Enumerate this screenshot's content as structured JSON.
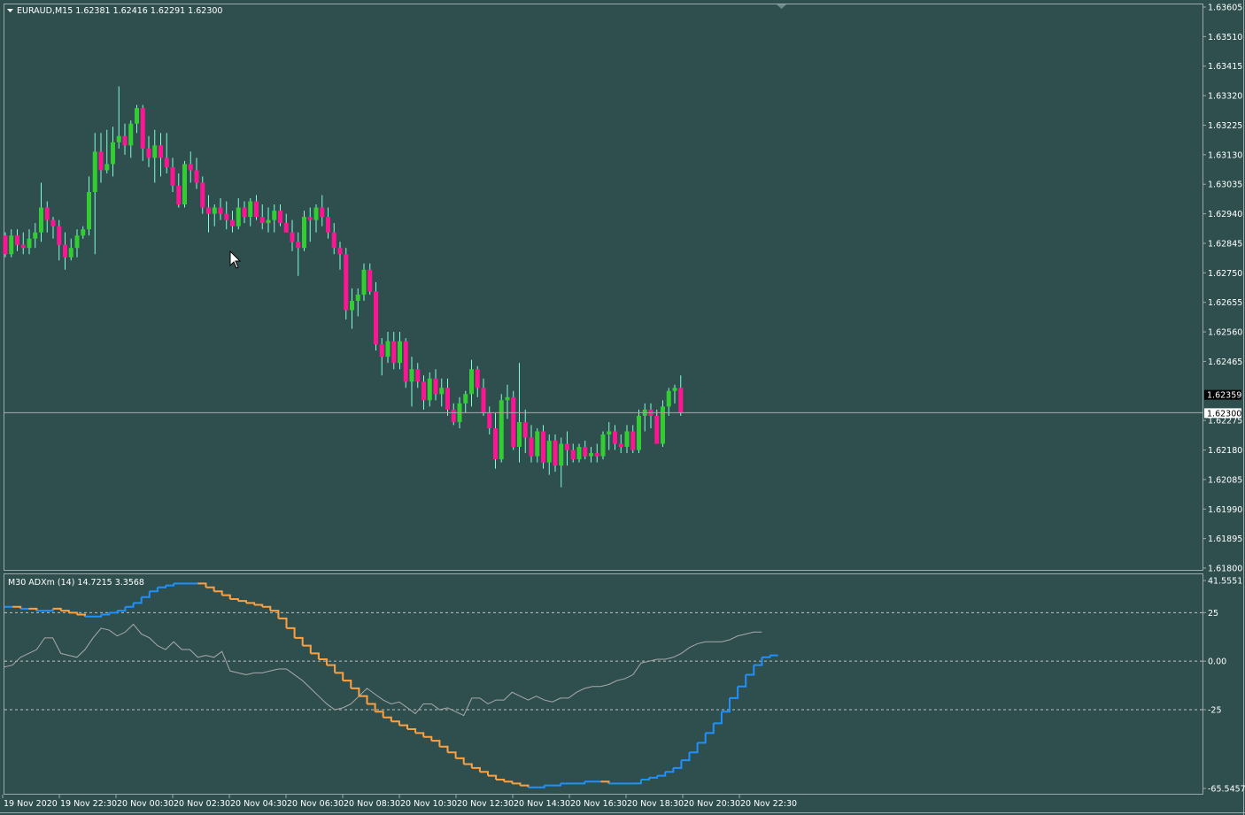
{
  "window": {
    "symbol_header": "EURAUD,M15  1.62381 1.62416 1.62291 1.62300",
    "collapse_icon": "triangle-down-icon"
  },
  "colors": {
    "background": "#2f4f4f",
    "bull_candle": "#32cd32",
    "bear_candle": "#ff1493",
    "wick": "#7fffd4",
    "bid_line": "#a9a9a9",
    "adx_up": "#1e90ff",
    "adx_down": "#ffa040",
    "adx_secondary": "#a9a9a9"
  },
  "price_axis": {
    "ticks": [
      "1.63605",
      "1.63510",
      "1.63415",
      "1.63320",
      "1.63225",
      "1.63130",
      "1.63035",
      "1.62940",
      "1.62845",
      "1.62750",
      "1.62655",
      "1.62560",
      "1.62465",
      "1.62275",
      "1.62180",
      "1.62085",
      "1.61990",
      "1.61895",
      "1.61800"
    ],
    "bid_label": "1.62300",
    "ask_label": "1.62359"
  },
  "indicator": {
    "header": "M30 ADXm (14) 14.7215 3.3568",
    "axis_ticks": [
      "41.5551",
      "25",
      "0.00",
      "-25",
      "-65.5457"
    ]
  },
  "time_axis": {
    "labels": [
      "19 Nov 2020",
      "19 Nov 22:30",
      "20 Nov 00:30",
      "20 Nov 02:30",
      "20 Nov 04:30",
      "20 Nov 06:30",
      "20 Nov 08:30",
      "20 Nov 10:30",
      "20 Nov 12:30",
      "20 Nov 14:30",
      "20 Nov 16:30",
      "20 Nov 18:30",
      "20 Nov 20:30",
      "20 Nov 22:30"
    ]
  },
  "chart_data": [
    {
      "type": "candlestick",
      "symbol": "EURAUD",
      "timeframe": "M15",
      "ylim": [
        1.618,
        1.63605
      ],
      "candles": [
        [
          1.6287,
          1.6288,
          1.628,
          1.6281
        ],
        [
          1.6281,
          1.6289,
          1.628,
          1.6287
        ],
        [
          1.6287,
          1.6289,
          1.6282,
          1.6284
        ],
        [
          1.6284,
          1.6288,
          1.6281,
          1.6283
        ],
        [
          1.6283,
          1.6289,
          1.6281,
          1.6286
        ],
        [
          1.6286,
          1.6291,
          1.6283,
          1.6288
        ],
        [
          1.6288,
          1.6304,
          1.6285,
          1.6296
        ],
        [
          1.6296,
          1.6298,
          1.6288,
          1.6292
        ],
        [
          1.6292,
          1.6293,
          1.6286,
          1.629
        ],
        [
          1.629,
          1.6292,
          1.6279,
          1.6284
        ],
        [
          1.6284,
          1.6288,
          1.6276,
          1.628
        ],
        [
          1.628,
          1.6286,
          1.6279,
          1.6283
        ],
        [
          1.6283,
          1.6289,
          1.628,
          1.6287
        ],
        [
          1.6287,
          1.629,
          1.6286,
          1.6289
        ],
        [
          1.6289,
          1.6306,
          1.6287,
          1.6301
        ],
        [
          1.6301,
          1.632,
          1.6281,
          1.6314
        ],
        [
          1.6314,
          1.632,
          1.6304,
          1.6308
        ],
        [
          1.6308,
          1.6321,
          1.6307,
          1.631
        ],
        [
          1.631,
          1.6322,
          1.6306,
          1.6317
        ],
        [
          1.6317,
          1.6335,
          1.6315,
          1.6319
        ],
        [
          1.6319,
          1.6323,
          1.6313,
          1.6316
        ],
        [
          1.6316,
          1.6324,
          1.6312,
          1.6323
        ],
        [
          1.6323,
          1.6329,
          1.632,
          1.6328
        ],
        [
          1.6328,
          1.6329,
          1.6311,
          1.6315
        ],
        [
          1.6315,
          1.6319,
          1.6309,
          1.6312
        ],
        [
          1.6312,
          1.6321,
          1.6304,
          1.6316
        ],
        [
          1.6316,
          1.632,
          1.6306,
          1.6312
        ],
        [
          1.6312,
          1.632,
          1.6307,
          1.6309
        ],
        [
          1.6309,
          1.6312,
          1.6301,
          1.6303
        ],
        [
          1.6303,
          1.6307,
          1.6296,
          1.6297
        ],
        [
          1.6297,
          1.6311,
          1.6296,
          1.631
        ],
        [
          1.631,
          1.6314,
          1.6304,
          1.6308
        ],
        [
          1.6308,
          1.6312,
          1.6302,
          1.6304
        ],
        [
          1.6304,
          1.6306,
          1.6294,
          1.6296
        ],
        [
          1.6296,
          1.63,
          1.6288,
          1.6294
        ],
        [
          1.6294,
          1.6297,
          1.629,
          1.6296
        ],
        [
          1.6296,
          1.6299,
          1.6292,
          1.6294
        ],
        [
          1.6294,
          1.6298,
          1.6289,
          1.6292
        ],
        [
          1.6292,
          1.6295,
          1.6288,
          1.629
        ],
        [
          1.629,
          1.6299,
          1.6289,
          1.6296
        ],
        [
          1.6296,
          1.6298,
          1.6291,
          1.6293
        ],
        [
          1.6293,
          1.6299,
          1.629,
          1.6298
        ],
        [
          1.6298,
          1.63,
          1.6292,
          1.6293
        ],
        [
          1.6293,
          1.6297,
          1.6289,
          1.6291
        ],
        [
          1.6291,
          1.6296,
          1.6288,
          1.6292
        ],
        [
          1.6292,
          1.6297,
          1.6288,
          1.6295
        ],
        [
          1.6295,
          1.6297,
          1.629,
          1.6291
        ],
        [
          1.6291,
          1.6294,
          1.6288,
          1.6288
        ],
        [
          1.6288,
          1.6292,
          1.6282,
          1.6285
        ],
        [
          1.6285,
          1.6288,
          1.6274,
          1.6283
        ],
        [
          1.6283,
          1.6295,
          1.6282,
          1.6293
        ],
        [
          1.6293,
          1.6296,
          1.6285,
          1.6292
        ],
        [
          1.6292,
          1.6297,
          1.6288,
          1.6296
        ],
        [
          1.6296,
          1.63,
          1.629,
          1.6293
        ],
        [
          1.6293,
          1.6296,
          1.6286,
          1.6288
        ],
        [
          1.6288,
          1.6291,
          1.6281,
          1.6283
        ],
        [
          1.6283,
          1.6285,
          1.6276,
          1.6281
        ],
        [
          1.6281,
          1.6283,
          1.626,
          1.6263
        ],
        [
          1.6263,
          1.627,
          1.6257,
          1.6266
        ],
        [
          1.6266,
          1.627,
          1.6261,
          1.6268
        ],
        [
          1.6268,
          1.6278,
          1.6266,
          1.6276
        ],
        [
          1.6276,
          1.6278,
          1.6268,
          1.6269
        ],
        [
          1.6269,
          1.6272,
          1.625,
          1.6252
        ],
        [
          1.6252,
          1.6254,
          1.6242,
          1.6248
        ],
        [
          1.6248,
          1.6256,
          1.6246,
          1.6253
        ],
        [
          1.6253,
          1.6256,
          1.6244,
          1.6246
        ],
        [
          1.6246,
          1.6256,
          1.6244,
          1.6253
        ],
        [
          1.6253,
          1.6254,
          1.6238,
          1.624
        ],
        [
          1.624,
          1.6248,
          1.6232,
          1.6244
        ],
        [
          1.6244,
          1.6246,
          1.6238,
          1.624
        ],
        [
          1.624,
          1.6242,
          1.6231,
          1.6234
        ],
        [
          1.6234,
          1.6243,
          1.6232,
          1.6241
        ],
        [
          1.6241,
          1.6244,
          1.6234,
          1.6236
        ],
        [
          1.6236,
          1.6241,
          1.6232,
          1.6238
        ],
        [
          1.6238,
          1.6241,
          1.6229,
          1.6231
        ],
        [
          1.6231,
          1.6233,
          1.6226,
          1.6227
        ],
        [
          1.6227,
          1.6235,
          1.6225,
          1.6233
        ],
        [
          1.6233,
          1.6237,
          1.623,
          1.6236
        ],
        [
          1.6236,
          1.6247,
          1.6232,
          1.6244
        ],
        [
          1.6244,
          1.6245,
          1.6235,
          1.6238
        ],
        [
          1.6238,
          1.6241,
          1.6229,
          1.623
        ],
        [
          1.623,
          1.6232,
          1.6223,
          1.6225
        ],
        [
          1.6225,
          1.623,
          1.6212,
          1.6215
        ],
        [
          1.6215,
          1.6236,
          1.6214,
          1.6234
        ],
        [
          1.6234,
          1.6239,
          1.6228,
          1.6235
        ],
        [
          1.6235,
          1.6237,
          1.6218,
          1.6219
        ],
        [
          1.6219,
          1.6246,
          1.6214,
          1.6227
        ],
        [
          1.6227,
          1.6231,
          1.6217,
          1.6222
        ],
        [
          1.6222,
          1.6226,
          1.6214,
          1.6216
        ],
        [
          1.6216,
          1.6225,
          1.6214,
          1.6224
        ],
        [
          1.6224,
          1.6226,
          1.6212,
          1.6214
        ],
        [
          1.6214,
          1.6223,
          1.621,
          1.6221
        ],
        [
          1.6221,
          1.6223,
          1.6211,
          1.6213
        ],
        [
          1.6213,
          1.6222,
          1.6206,
          1.622
        ],
        [
          1.622,
          1.6224,
          1.6213,
          1.6218
        ],
        [
          1.6218,
          1.622,
          1.6214,
          1.6215
        ],
        [
          1.6215,
          1.622,
          1.6214,
          1.6219
        ],
        [
          1.6219,
          1.6221,
          1.6215,
          1.6216
        ],
        [
          1.6216,
          1.6219,
          1.6214,
          1.6217
        ],
        [
          1.6217,
          1.622,
          1.6214,
          1.6216
        ],
        [
          1.6216,
          1.6224,
          1.6215,
          1.6223
        ],
        [
          1.6223,
          1.6227,
          1.6218,
          1.6224
        ],
        [
          1.6224,
          1.6226,
          1.6218,
          1.622
        ],
        [
          1.622,
          1.6223,
          1.6217,
          1.6219
        ],
        [
          1.6219,
          1.6226,
          1.6217,
          1.6224
        ],
        [
          1.6224,
          1.6226,
          1.6217,
          1.6218
        ],
        [
          1.6218,
          1.6231,
          1.6217,
          1.6229
        ],
        [
          1.6229,
          1.6233,
          1.6224,
          1.6231
        ],
        [
          1.6231,
          1.6233,
          1.6225,
          1.6229
        ],
        [
          1.6229,
          1.6231,
          1.622,
          1.622
        ],
        [
          1.622,
          1.6234,
          1.6219,
          1.6232
        ],
        [
          1.6232,
          1.6238,
          1.6229,
          1.6237
        ],
        [
          1.6237,
          1.6239,
          1.6233,
          1.6238
        ],
        [
          1.6238,
          1.6242,
          1.6229,
          1.623
        ]
      ]
    },
    {
      "type": "line",
      "name": "ADXm",
      "ylim": [
        -65.5457,
        41.5551
      ],
      "levels": [
        25,
        0,
        -25
      ],
      "series": [
        {
          "values": [
            28,
            28,
            27,
            27,
            26,
            26,
            27,
            26,
            25,
            24,
            23,
            23,
            24,
            25,
            26,
            28,
            30,
            33,
            36,
            38,
            39,
            40,
            40,
            40,
            40,
            38,
            36,
            34,
            32,
            31,
            30,
            29,
            28,
            26,
            22,
            17,
            12,
            8,
            4,
            1,
            -2,
            -6,
            -10,
            -14,
            -18,
            -22,
            -26,
            -29,
            -31,
            -33,
            -35,
            -37,
            -39,
            -41,
            -44,
            -47,
            -50,
            -53,
            -55,
            -57,
            -59,
            -61,
            -62,
            -63,
            -64,
            -65,
            -65,
            -64,
            -64,
            -63,
            -63,
            -63,
            -62,
            -62,
            -62,
            -63,
            -63,
            -63,
            -63,
            -61,
            -60,
            -59,
            -57,
            -55,
            -51,
            -47,
            -42,
            -37,
            -32,
            -26,
            -19,
            -13,
            -7,
            -2,
            2,
            3,
            3
          ]
        },
        {
          "values": [
            -3,
            -2,
            2,
            4,
            6,
            12,
            12,
            4,
            3,
            2,
            6,
            12,
            17,
            16,
            13,
            15,
            19,
            14,
            12,
            8,
            6,
            10,
            6,
            6,
            2,
            3,
            2,
            5,
            -5,
            -6,
            -7,
            -6,
            -6,
            -5,
            -4,
            -4,
            -7,
            -10,
            -14,
            -18,
            -22,
            -25,
            -24,
            -22,
            -18,
            -14,
            -17,
            -20,
            -22,
            -21,
            -24,
            -27,
            -22,
            -22,
            -25,
            -24,
            -26,
            -28,
            -19,
            -19,
            -22,
            -20,
            -20,
            -16,
            -18,
            -20,
            -18,
            -20,
            -21,
            -19,
            -19,
            -16,
            -14,
            -13,
            -13,
            -12,
            -10,
            -9,
            -7,
            -1,
            0,
            1,
            1,
            2,
            4,
            7,
            9,
            10,
            10,
            10,
            11,
            13,
            14,
            15,
            15
          ]
        }
      ]
    }
  ]
}
